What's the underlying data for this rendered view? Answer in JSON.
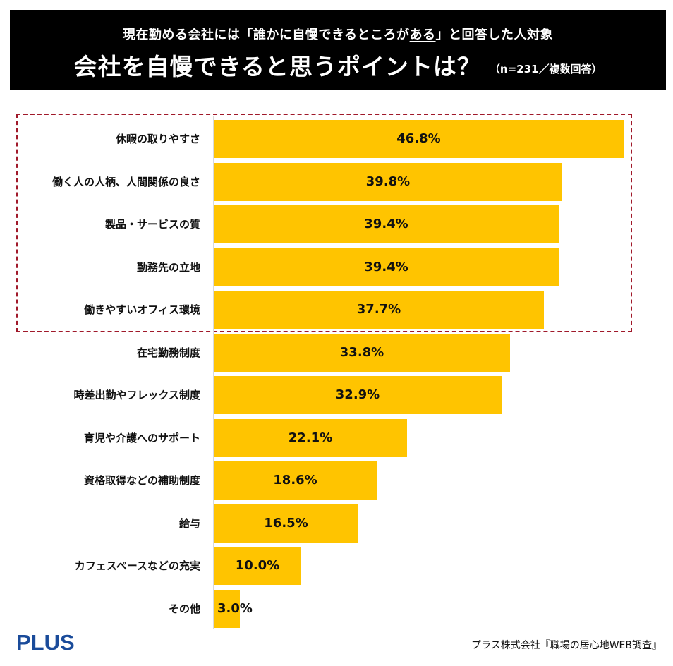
{
  "header": {
    "subtitle_before": "現在勤める会社には「誰かに自慢できるところが",
    "subtitle_underlined": "ある",
    "subtitle_after": "」と回答した人対象",
    "title": "会社を自慢できると思うポイントは？",
    "note": "（n=231／複数回答）"
  },
  "colors": {
    "bar": "#ffc400",
    "highlight_border": "#a0192a",
    "header_bg": "#000000",
    "logo": "#1a4b9a"
  },
  "chart_data": {
    "type": "bar",
    "orientation": "horizontal",
    "title": "会社を自慢できると思うポイントは？",
    "xlabel": "",
    "ylabel": "",
    "xlim": [
      0,
      46.8
    ],
    "unit": "%",
    "highlighted_top_n": 5,
    "categories": [
      "休暇の取りやすさ",
      "働く人の人柄、人間関係の良さ",
      "製品・サービスの質",
      "勤務先の立地",
      "働きやすいオフィス環境",
      "在宅勤務制度",
      "時差出勤やフレックス制度",
      "育児や介護へのサポート",
      "資格取得などの補助制度",
      "給与",
      "カフェスペースなどの充実",
      "その他"
    ],
    "values": [
      46.8,
      39.8,
      39.4,
      39.4,
      37.7,
      33.8,
      32.9,
      22.1,
      18.6,
      16.5,
      10.0,
      3.0
    ],
    "labels": [
      "46.8%",
      "39.8%",
      "39.4%",
      "39.4%",
      "37.7%",
      "33.8%",
      "32.9%",
      "22.1%",
      "18.6%",
      "16.5%",
      "10.0%",
      "3.0%"
    ]
  },
  "footer": {
    "logo_text": "PLUS",
    "source": "プラス株式会社『職場の居心地WEB調査』"
  }
}
